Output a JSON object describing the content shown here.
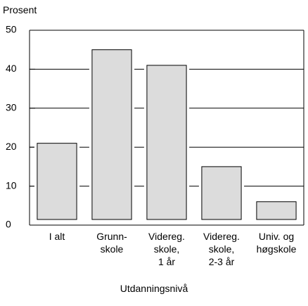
{
  "chart_data": {
    "type": "bar",
    "y_label": "Prosent",
    "x_label": "Utdanningsnivå",
    "categories": [
      "I alt",
      "Grunn-\nskole",
      "Videreg.\nskole,\n1 år",
      "Videreg.\nskole,\n2-3 år",
      "Univ. og\nhøgskole"
    ],
    "values": [
      21,
      45,
      41,
      15,
      6
    ],
    "color": "#dcdcdc",
    "ylim": [
      0,
      50
    ],
    "yticks": [
      0,
      10,
      20,
      30,
      40,
      50
    ],
    "grid": true
  }
}
